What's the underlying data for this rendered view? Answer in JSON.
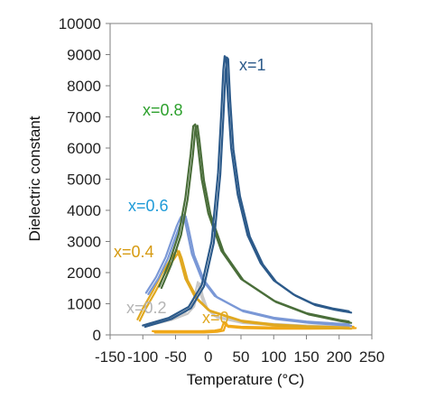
{
  "chart_data": {
    "type": "line",
    "title": "",
    "xlabel": "Temperature (°C)",
    "ylabel": "Dielectric constant",
    "xlim": [
      -150,
      250
    ],
    "ylim": [
      0,
      10000
    ],
    "xticks": [
      -150,
      -100,
      -50,
      0,
      50,
      100,
      150,
      200,
      250
    ],
    "yticks": [
      0,
      1000,
      2000,
      3000,
      4000,
      5000,
      6000,
      7000,
      8000,
      9000,
      10000
    ],
    "xtick_labels": [
      "-150",
      "-100",
      "-50",
      "0",
      "50",
      "100",
      "150",
      "200",
      "250"
    ],
    "ytick_labels": [
      "0",
      "1000",
      "2000",
      "3000",
      "4000",
      "5000",
      "6000",
      "7000",
      "8000",
      "9000",
      "10000"
    ],
    "grid": false,
    "legend": "none",
    "series": [
      {
        "name": "x=0",
        "color": "#f0a818",
        "values": [
          [
            -85,
            120
          ],
          [
            -50,
            120
          ],
          [
            -10,
            120
          ],
          [
            10,
            140
          ],
          [
            20,
            180
          ],
          [
            24,
            420
          ],
          [
            27,
            300
          ],
          [
            50,
            260
          ],
          [
            100,
            240
          ],
          [
            150,
            240
          ],
          [
            200,
            250
          ],
          [
            222,
            260
          ]
        ]
      },
      {
        "name": "x=0.2",
        "color": "#c8c8c8",
        "values": [
          [
            -93,
            350
          ],
          [
            -60,
            520
          ],
          [
            -35,
            720
          ],
          [
            -25,
            950
          ],
          [
            -20,
            1350
          ],
          [
            -16,
            1700
          ],
          [
            -12,
            1300
          ],
          [
            -5,
            900
          ],
          [
            10,
            600
          ],
          [
            50,
            420
          ],
          [
            100,
            350
          ],
          [
            150,
            300
          ],
          [
            200,
            280
          ],
          [
            215,
            270
          ]
        ]
      },
      {
        "name": "x=0.4",
        "color": "#e0a820",
        "values": [
          [
            -108,
            500
          ],
          [
            -100,
            850
          ],
          [
            -85,
            1400
          ],
          [
            -70,
            2000
          ],
          [
            -60,
            2350
          ],
          [
            -52,
            2600
          ],
          [
            -48,
            2730
          ],
          [
            -44,
            2500
          ],
          [
            -35,
            1800
          ],
          [
            -20,
            1200
          ],
          [
            0,
            800
          ],
          [
            50,
            460
          ],
          [
            100,
            340
          ],
          [
            150,
            280
          ],
          [
            200,
            250
          ],
          [
            215,
            240
          ]
        ]
      },
      {
        "name": "x=0.6",
        "color": "#7a98d6",
        "values": [
          [
            -95,
            1350
          ],
          [
            -80,
            1850
          ],
          [
            -65,
            2500
          ],
          [
            -55,
            3100
          ],
          [
            -48,
            3500
          ],
          [
            -42,
            3780
          ],
          [
            -38,
            3850
          ],
          [
            -34,
            3500
          ],
          [
            -25,
            2600
          ],
          [
            -10,
            1800
          ],
          [
            10,
            1250
          ],
          [
            50,
            800
          ],
          [
            100,
            550
          ],
          [
            150,
            430
          ],
          [
            200,
            360
          ],
          [
            215,
            340
          ]
        ]
      },
      {
        "name": "x=0.8",
        "color": "#4a6e3a",
        "values": [
          [
            -75,
            1550
          ],
          [
            -60,
            2300
          ],
          [
            -45,
            3250
          ],
          [
            -35,
            4400
          ],
          [
            -27,
            5800
          ],
          [
            -23,
            6700
          ],
          [
            -20,
            6760
          ],
          [
            -17,
            6300
          ],
          [
            -10,
            5000
          ],
          [
            0,
            3900
          ],
          [
            20,
            2700
          ],
          [
            50,
            1800
          ],
          [
            100,
            1100
          ],
          [
            150,
            700
          ],
          [
            200,
            480
          ],
          [
            215,
            430
          ]
        ]
      },
      {
        "name": "x=1",
        "color": "#2c5a8a",
        "values": [
          [
            -100,
            300
          ],
          [
            -60,
            550
          ],
          [
            -30,
            900
          ],
          [
            -10,
            1600
          ],
          [
            5,
            3000
          ],
          [
            15,
            5200
          ],
          [
            20,
            7200
          ],
          [
            23,
            8500
          ],
          [
            25,
            8950
          ],
          [
            27,
            8900
          ],
          [
            30,
            7600
          ],
          [
            35,
            6000
          ],
          [
            45,
            4500
          ],
          [
            60,
            3200
          ],
          [
            80,
            2300
          ],
          [
            100,
            1750
          ],
          [
            130,
            1300
          ],
          [
            160,
            1000
          ],
          [
            190,
            850
          ],
          [
            215,
            760
          ]
        ]
      }
    ],
    "annotations": [
      {
        "text": "x=1",
        "color": "#2c5a8a"
      },
      {
        "text": "x=0.8",
        "color": "#2ca02c"
      },
      {
        "text": "x=0.6",
        "color": "#1f9bd8"
      },
      {
        "text": "x=0.4",
        "color": "#d69a10"
      },
      {
        "text": "x=0.2",
        "color": "#b4b4b4"
      },
      {
        "text": "x=0",
        "color": "#e0a820"
      }
    ]
  }
}
